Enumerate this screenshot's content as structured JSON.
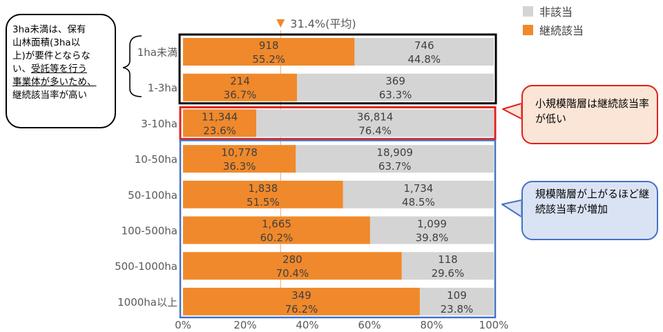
{
  "chart_data": {
    "type": "bar",
    "orientation": "horizontal",
    "stacked": "percent",
    "categories": [
      "1ha未満",
      "1-3ha",
      "3-10ha",
      "10-50ha",
      "50-100ha",
      "100-500ha",
      "500-1000ha",
      "1000ha以上"
    ],
    "series": [
      {
        "name": "継続該当",
        "color": "#f0892b",
        "counts": [
          "918",
          "214",
          "11,344",
          "10,778",
          "1,838",
          "1,665",
          "280",
          "349"
        ],
        "values": [
          55.2,
          36.7,
          23.6,
          36.3,
          51.5,
          60.2,
          70.4,
          76.2
        ],
        "labels": [
          "55.2%",
          "36.7%",
          "23.6%",
          "36.3%",
          "51.5%",
          "60.2%",
          "70.4%",
          "76.2%"
        ]
      },
      {
        "name": "非該当",
        "color": "#d4d4d4",
        "counts": [
          "746",
          "369",
          "36,814",
          "18,909",
          "1,734",
          "1,099",
          "118",
          "109"
        ],
        "values": [
          44.8,
          63.3,
          76.4,
          63.7,
          48.5,
          39.8,
          29.6,
          23.8
        ],
        "labels": [
          "44.8%",
          "63.3%",
          "76.4%",
          "63.7%",
          "48.5%",
          "39.8%",
          "29.6%",
          "23.8%"
        ]
      }
    ],
    "x_ticks": [
      "0%",
      "20%",
      "40%",
      "60%",
      "80%",
      "100%"
    ],
    "xlim": [
      0,
      100
    ],
    "average": {
      "value": 31.4,
      "label": "31.4%(平均)",
      "marker": "▼"
    },
    "legend": {
      "position": "top-right",
      "order": [
        "非該当",
        "継続該当"
      ]
    },
    "grid": false
  },
  "highlight_colors": {
    "small_group": "#000000",
    "mid_group": "#e0201a",
    "large_group": "#4472c4"
  },
  "callouts": {
    "left": {
      "line1": "3ha未満は、保有",
      "line2": "山林面積(3ha以",
      "line3": "上)が要件とならな",
      "line4a": "い、",
      "line4b": "受託等を行う",
      "line5": "事業体が多いため、",
      "line6": "継続該当率が高い"
    },
    "red": "小規模階層は継続該当率が低い",
    "blue": "規模階層が上がるほど継続該当率が増加"
  }
}
